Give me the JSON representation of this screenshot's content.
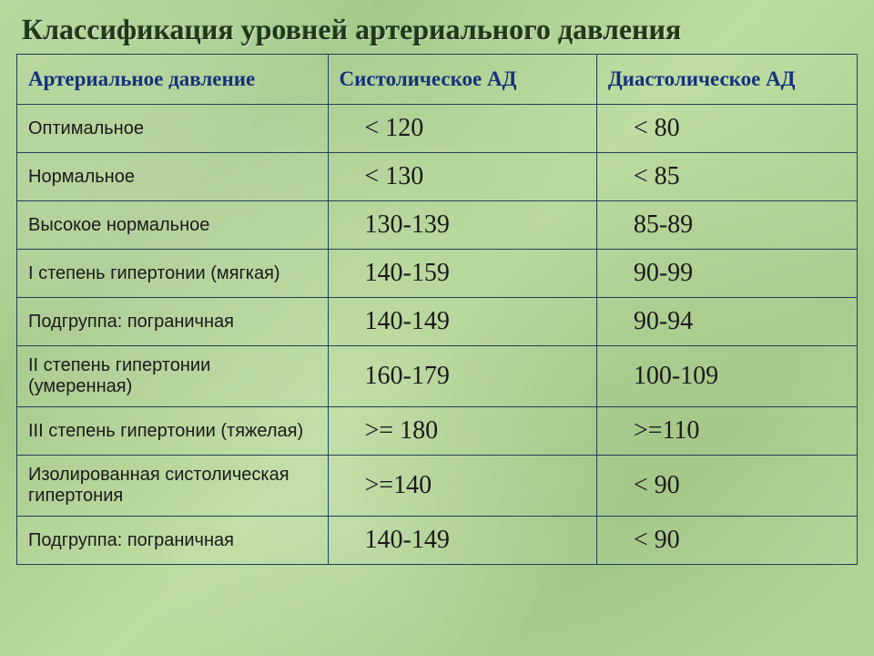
{
  "title": "Классификация уровней артериального давления",
  "table": {
    "type": "table",
    "columns": [
      "Артериальное давление",
      "Систолическое АД",
      "Диастолическое АД"
    ],
    "column_widths_pct": [
      37,
      32,
      31
    ],
    "rows": [
      {
        "category": "Оптимальное",
        "systolic": "< 120",
        "diastolic": "< 80"
      },
      {
        "category": "Нормальное",
        "systolic": "< 130",
        "diastolic": "< 85"
      },
      {
        "category": "Высокое нормальное",
        "systolic": "130-139",
        "diastolic": "85-89"
      },
      {
        "category": "I степень гипертонии (мягкая)",
        "systolic": "140-159",
        "diastolic": "90-99"
      },
      {
        "category": "Подгруппа: пограничная",
        "systolic": "140-149",
        "diastolic": "90-94"
      },
      {
        "category": "II степень гипертонии (умеренная)",
        "systolic": "160-179",
        "diastolic": "100-109"
      },
      {
        "category": "III степень гипертонии (тяжелая)",
        "systolic": ">= 180",
        "diastolic": ">=110"
      },
      {
        "category": "Изолированная систолическая гипертония",
        "systolic": ">=140",
        "diastolic": "< 90"
      },
      {
        "category": "Подгруппа: пограничная",
        "systolic": "140-149",
        "diastolic": "< 90"
      }
    ],
    "styling": {
      "border_color": "#1e3e5e",
      "header_text_color": "#15317e",
      "header_font_family": "Georgia, serif",
      "header_fontsize_pt": 17,
      "category_fontsize_pt": 15,
      "category_font_family": "Arial, sans-serif",
      "value_fontsize_pt": 21,
      "value_font_family": "Georgia, serif",
      "cell_text_color": "#1a1a1a"
    }
  },
  "colors": {
    "background_base": "#b3d396",
    "title_color": "#1f3a1a"
  },
  "typography": {
    "title_font_family": "Georgia, serif",
    "title_fontsize_pt": 24,
    "title_weight": "bold"
  }
}
